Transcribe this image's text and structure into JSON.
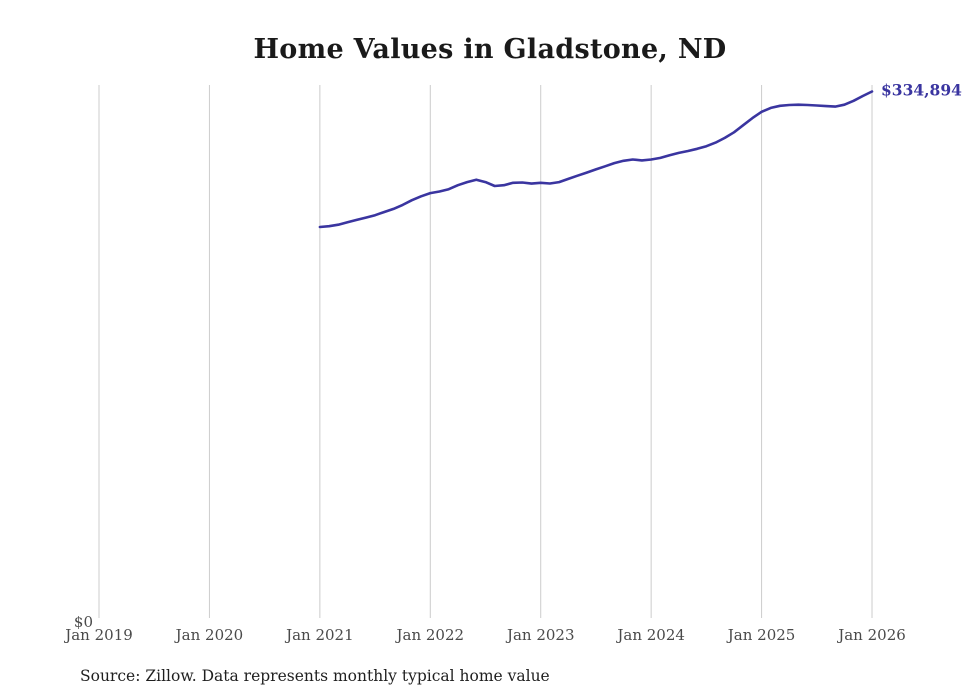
{
  "title": "Home Values in Gladstone, ND",
  "source_note": "Source: Zillow. Data represents monthly typical home value",
  "y_zero_label": "$0",
  "end_value_label": "$334,894",
  "colors": {
    "line": "#3a35a0",
    "end_label": "#3a35a0",
    "grid": "#cccccc",
    "tick_text": "#4a4a4a",
    "title_text": "#1a1a1a"
  },
  "chart_data": {
    "type": "line",
    "title": "Home Values in Gladstone, ND",
    "xlabel": "",
    "ylabel": "",
    "ylim": [
      0,
      339000
    ],
    "grid": "vertical-only",
    "legend_position": "none",
    "x_ticks": [
      "Jan 2019",
      "Jan 2020",
      "Jan 2021",
      "Jan 2022",
      "Jan 2023",
      "Jan 2024",
      "Jan 2025",
      "Jan 2026"
    ],
    "series": [
      {
        "name": "Typical home value",
        "x_start": "2021-01",
        "x_step_months": 1,
        "values": [
          249000,
          249500,
          250500,
          252000,
          253500,
          255000,
          256500,
          258500,
          260500,
          263000,
          266000,
          268500,
          270500,
          271500,
          273000,
          275500,
          277500,
          279000,
          277500,
          275000,
          275500,
          277000,
          277200,
          276500,
          277000,
          276600,
          277500,
          279500,
          281500,
          283500,
          285500,
          287500,
          289500,
          291000,
          291800,
          291200,
          291800,
          292800,
          294500,
          296000,
          297200,
          298600,
          300200,
          302500,
          305500,
          309000,
          313500,
          318000,
          322000,
          324500,
          325800,
          326300,
          326500,
          326300,
          326000,
          325600,
          325300,
          326500,
          329000,
          332000,
          334894
        ],
        "last_value": 334894
      }
    ]
  }
}
